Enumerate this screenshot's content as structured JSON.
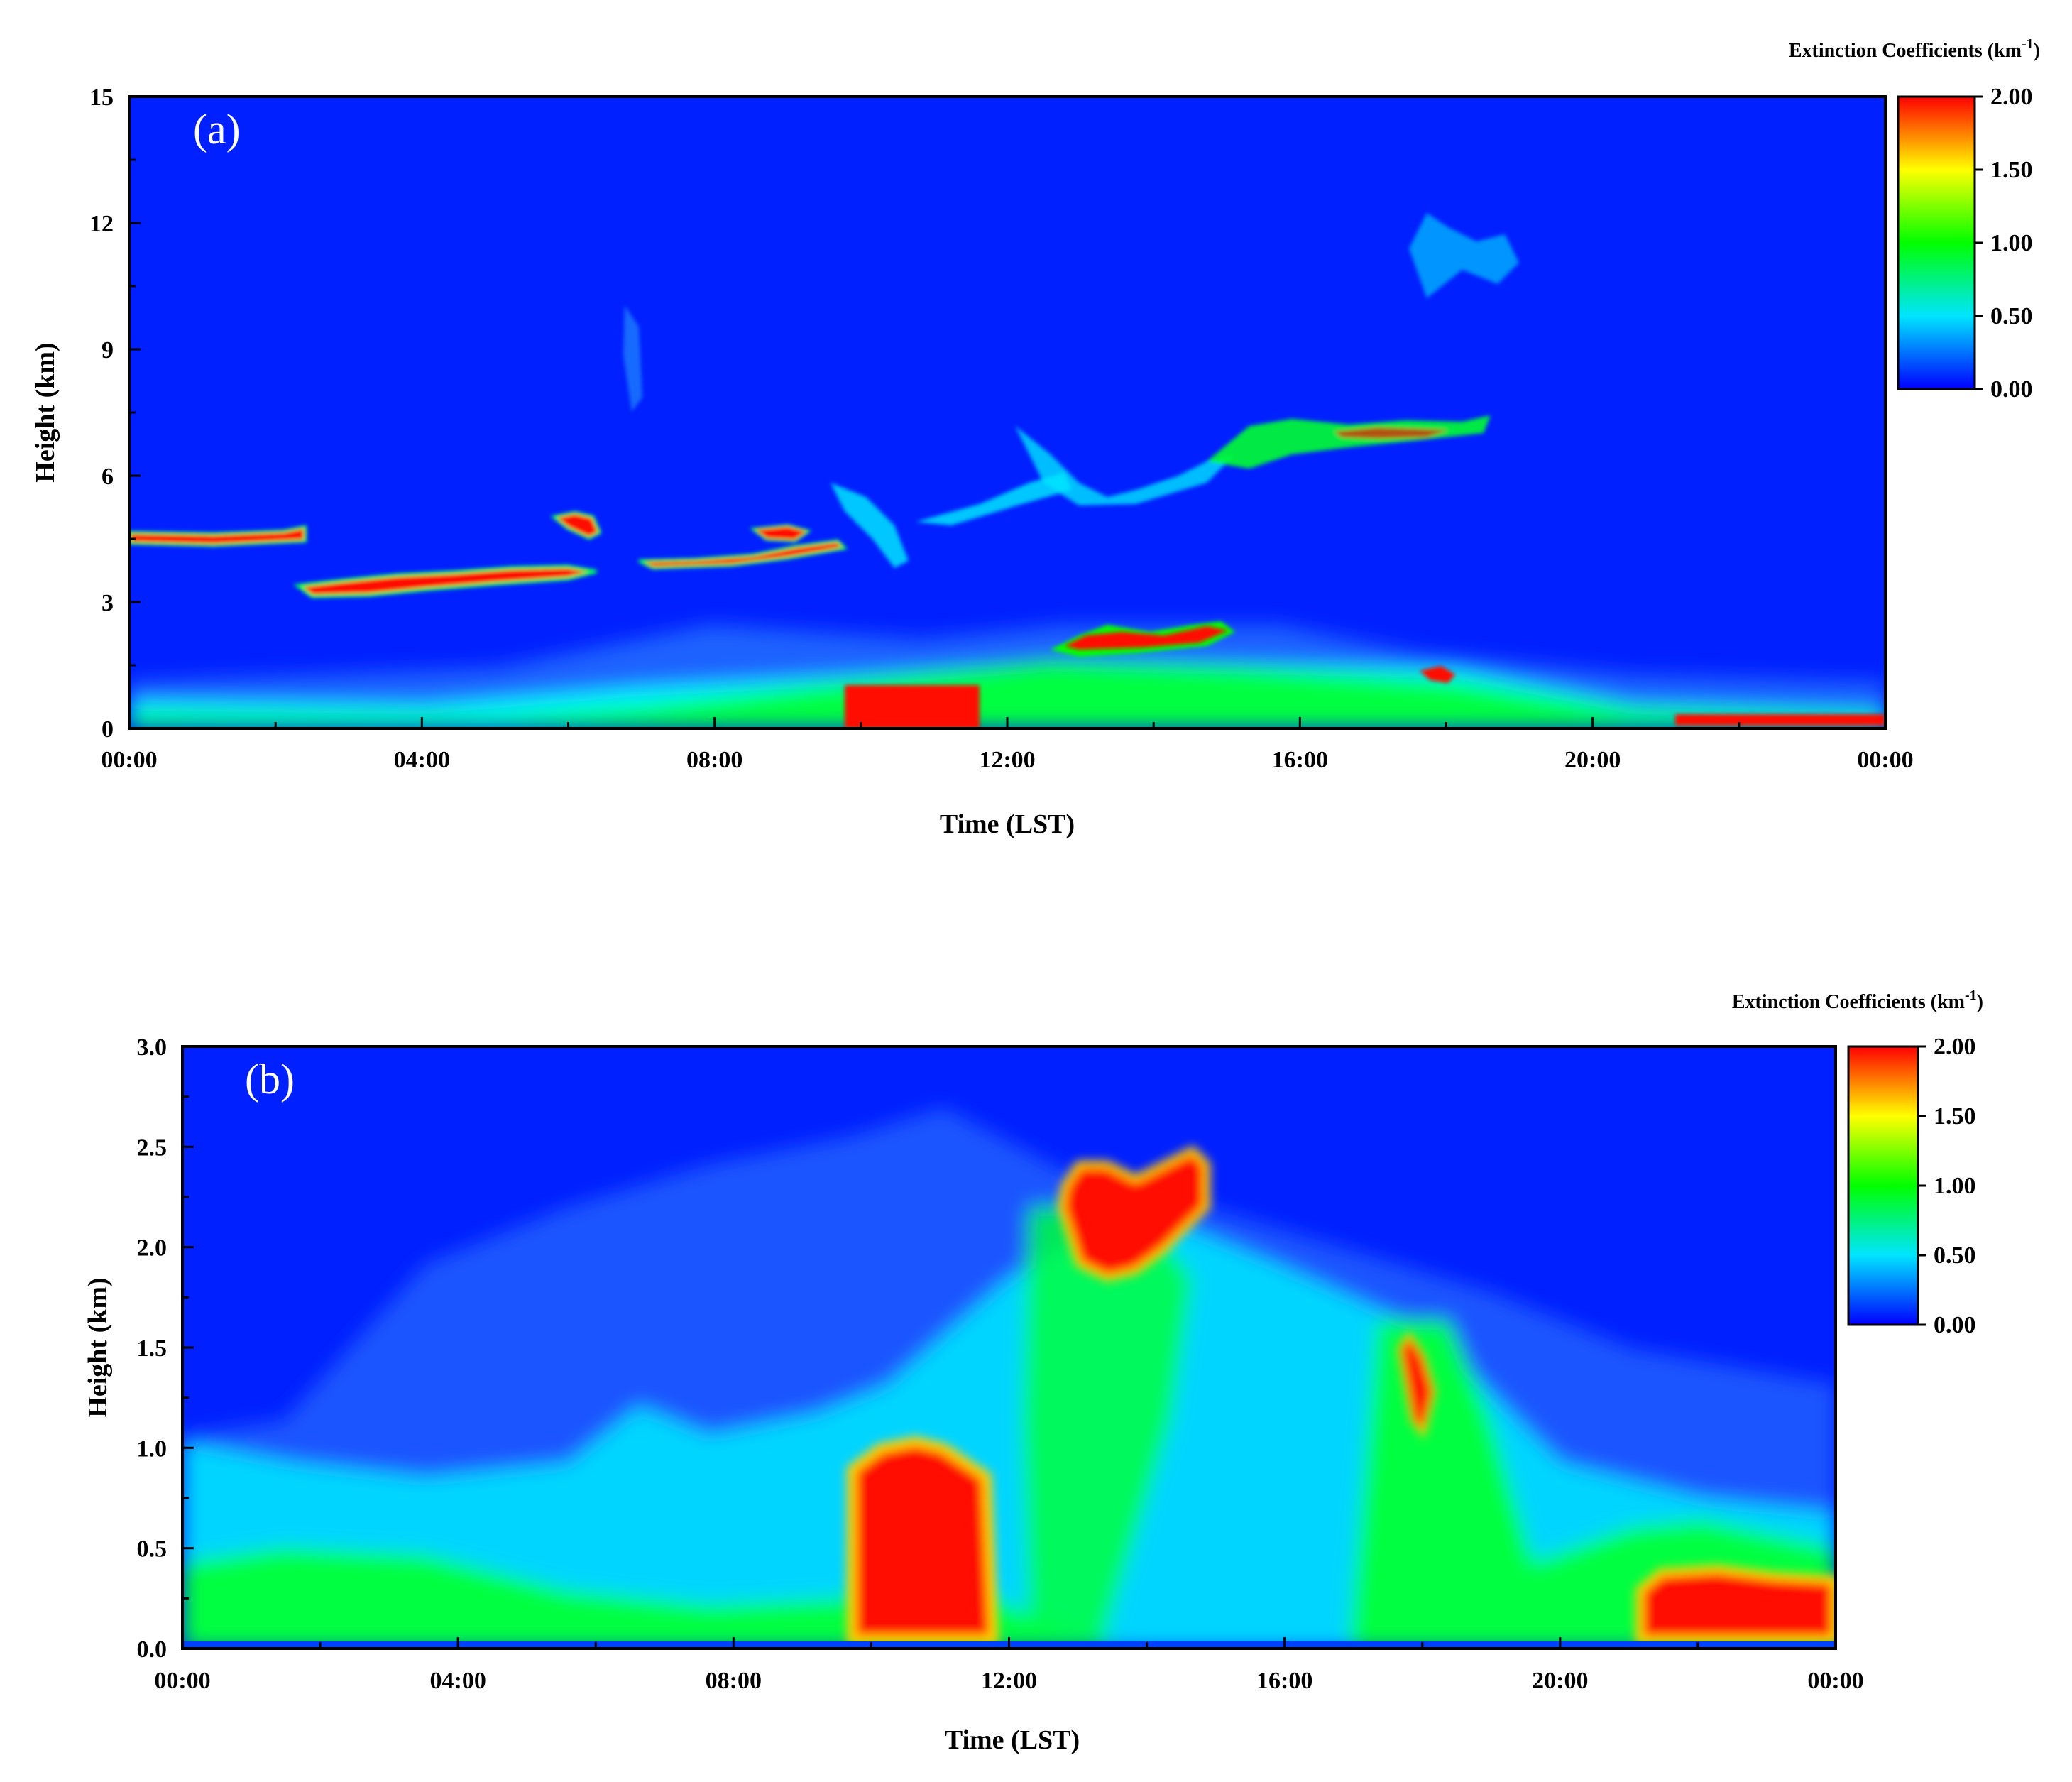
{
  "chart_data": [
    {
      "type": "heatmap",
      "panel_label": "(a)",
      "xlabel": "Time (LST)",
      "ylabel": "Height (km)",
      "x_ticks": [
        "00:00",
        "04:00",
        "08:00",
        "12:00",
        "16:00",
        "20:00",
        "00:00"
      ],
      "y_ticks": [
        "0",
        "3",
        "6",
        "9",
        "12",
        "15"
      ],
      "ylim": [
        0,
        15
      ],
      "xlim_hours": [
        0,
        24
      ],
      "colorbar": {
        "title": "Extinction Coefficients (km",
        "title_sup": "-1",
        "title_close": ")",
        "ticks": [
          "2.00",
          "1.50",
          "1.00",
          "0.50",
          "0.00"
        ],
        "range": [
          0,
          2
        ]
      },
      "colormap": [
        "#0000ff",
        "#00e5ff",
        "#00ff00",
        "#ffff00",
        "#ff0000"
      ],
      "background_color": "#0020ff",
      "features": [
        {
          "hours": [
            0.0,
            2.4
          ],
          "height": [
            4.4,
            4.8
          ],
          "value": 2.0
        },
        {
          "hours": [
            2.3,
            6.2
          ],
          "height": [
            3.1,
            3.9
          ],
          "value": 2.0
        },
        {
          "hours": [
            6.0,
            6.6
          ],
          "height": [
            4.5,
            5.1
          ],
          "value": 2.0
        },
        {
          "hours": [
            7.0,
            10.0
          ],
          "height": [
            3.8,
            4.9
          ],
          "value": 2.0
        },
        {
          "hours": [
            9.6,
            12.0
          ],
          "height": [
            3.8,
            6.2
          ],
          "value": 0.6
        },
        {
          "hours": [
            12.0,
            15.4
          ],
          "height": [
            5.0,
            7.5
          ],
          "value": 0.7
        },
        {
          "hours": [
            14.8,
            18.6
          ],
          "height": [
            6.0,
            8.0
          ],
          "value": 1.1
        },
        {
          "hours": [
            17.0,
            18.2
          ],
          "height": [
            6.6,
            7.4
          ],
          "value": 2.0
        },
        {
          "hours": [
            17.4,
            19.0
          ],
          "height": [
            10.0,
            12.4
          ],
          "value": 0.6
        },
        {
          "hours": [
            12.6,
            15.2
          ],
          "height": [
            1.7,
            2.5
          ],
          "value": 2.0
        },
        {
          "hours": [
            0.0,
            24.0
          ],
          "height": [
            0.0,
            1.0
          ],
          "value": 0.7
        },
        {
          "hours": [
            9.8,
            11.8
          ],
          "height": [
            0.0,
            1.1
          ],
          "value": 2.0
        },
        {
          "hours": [
            17.6,
            18.0
          ],
          "height": [
            1.1,
            1.5
          ],
          "value": 2.0
        },
        {
          "hours": [
            21.0,
            24.0
          ],
          "height": [
            0.0,
            0.3
          ],
          "value": 2.0
        }
      ]
    },
    {
      "type": "heatmap",
      "panel_label": "(b)",
      "xlabel": "Time (LST)",
      "ylabel": "Height (km)",
      "x_ticks": [
        "00:00",
        "04:00",
        "08:00",
        "12:00",
        "16:00",
        "20:00",
        "00:00"
      ],
      "y_ticks": [
        "0.0",
        "0.5",
        "1.0",
        "1.5",
        "2.0",
        "2.5",
        "3.0"
      ],
      "ylim": [
        0,
        3
      ],
      "xlim_hours": [
        0,
        24
      ],
      "colorbar": {
        "title": "Extinction Coefficients (km",
        "title_sup": "-1",
        "title_close": ")",
        "ticks": [
          "2.00",
          "1.50",
          "1.00",
          "0.50",
          "0.00"
        ],
        "range": [
          0,
          2
        ]
      },
      "colormap": [
        "#0000ff",
        "#00e5ff",
        "#00ff00",
        "#ffff00",
        "#ff0000"
      ],
      "background_color": "#0020ff",
      "features": [
        {
          "hours": [
            0.0,
            2.5
          ],
          "height": [
            0.0,
            1.0
          ],
          "value": 0.7
        },
        {
          "hours": [
            2.5,
            7.0
          ],
          "height": [
            0.0,
            0.8
          ],
          "value": 0.8
        },
        {
          "hours": [
            7.0,
            9.8
          ],
          "height": [
            0.0,
            0.9
          ],
          "value": 0.9
        },
        {
          "hours": [
            9.8,
            11.8
          ],
          "height": [
            0.0,
            1.1
          ],
          "value": 2.0
        },
        {
          "hours": [
            11.8,
            18.6
          ],
          "height": [
            0.0,
            1.5
          ],
          "value": 0.7
        },
        {
          "hours": [
            12.6,
            15.2
          ],
          "height": [
            1.6,
            2.5
          ],
          "value": 2.0
        },
        {
          "hours": [
            17.4,
            18.1
          ],
          "height": [
            1.0,
            1.6
          ],
          "value": 2.0
        },
        {
          "hours": [
            18.6,
            24.0
          ],
          "height": [
            0.0,
            0.7
          ],
          "value": 0.9
        },
        {
          "hours": [
            21.0,
            24.0
          ],
          "height": [
            0.0,
            0.35
          ],
          "value": 2.0
        }
      ]
    }
  ]
}
